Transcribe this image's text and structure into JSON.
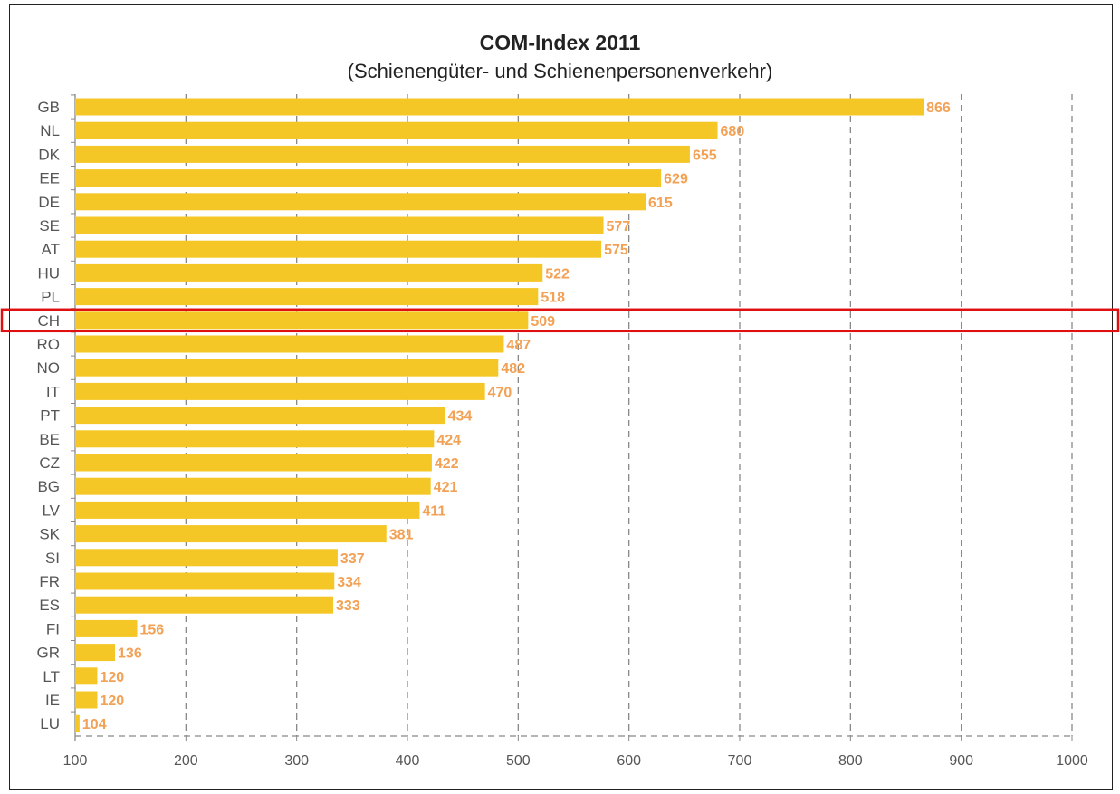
{
  "chart_data": {
    "type": "bar",
    "orientation": "horizontal",
    "title": "COM-Index 2011",
    "subtitle": "(Schienengüter- und Schienenpersonenverkehr)",
    "categories": [
      "GB",
      "NL",
      "DK",
      "EE",
      "DE",
      "SE",
      "AT",
      "HU",
      "PL",
      "CH",
      "RO",
      "NO",
      "IT",
      "PT",
      "BE",
      "CZ",
      "BG",
      "LV",
      "SK",
      "SI",
      "FR",
      "ES",
      "FI",
      "GR",
      "LT",
      "IE",
      "LU"
    ],
    "values": [
      866,
      680,
      655,
      629,
      615,
      577,
      575,
      522,
      518,
      509,
      487,
      482,
      470,
      434,
      424,
      422,
      421,
      411,
      381,
      337,
      334,
      333,
      156,
      136,
      120,
      120,
      104
    ],
    "xlim": [
      100,
      1000
    ],
    "xticks": [
      100,
      200,
      300,
      400,
      500,
      600,
      700,
      800,
      900,
      1000
    ],
    "grid": "vertical-dashed",
    "highlight_category": "CH",
    "colors": {
      "bar": "#F5C726",
      "value_label": "#F2A155",
      "highlight_box": "#E01010",
      "grid": "#888888",
      "text": "#555555"
    }
  }
}
